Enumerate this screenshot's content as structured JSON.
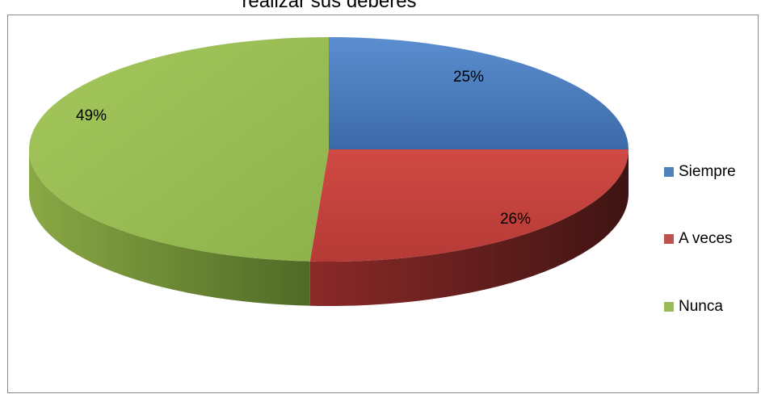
{
  "chart_data": {
    "type": "pie",
    "title": "realizar sus deberes",
    "categories": [
      "Siempre",
      "A veces",
      "Nunca"
    ],
    "values": [
      25,
      26,
      49
    ],
    "value_labels": [
      "25%",
      "26%",
      "49%"
    ],
    "colors": [
      "#4f81bd",
      "#c0504d",
      "#9bbb59"
    ],
    "legend_position": "right",
    "style": "3d"
  }
}
